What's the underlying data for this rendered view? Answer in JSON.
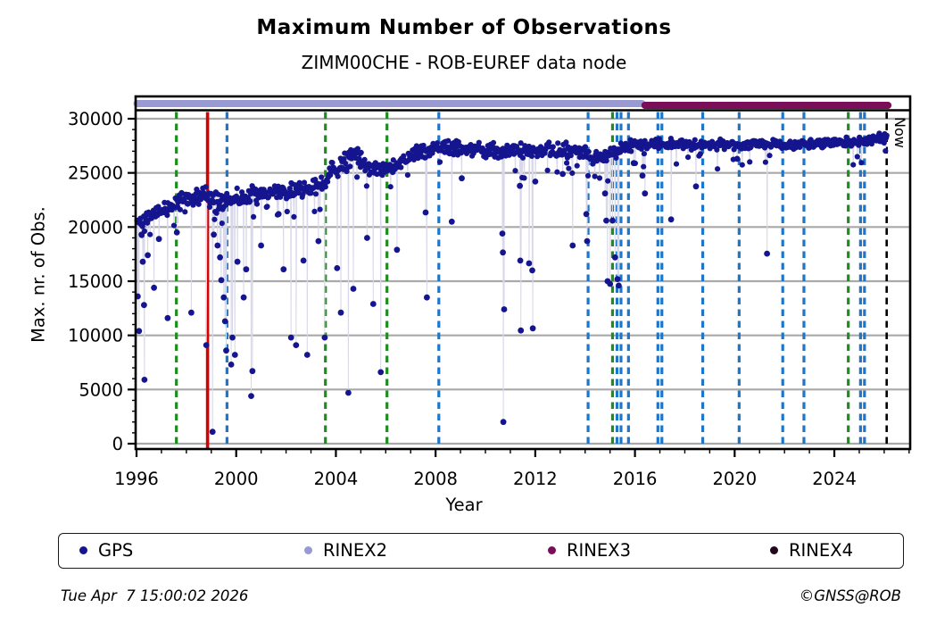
{
  "chart_data": {
    "type": "scatter",
    "title": "Maximum Number of Observations",
    "subtitle": "ZIMM00CHE - ROB-EUREF data node",
    "xlabel": "Year",
    "ylabel": "Max. nr. of Obs.",
    "now_label": "Now",
    "xlim": [
      1996,
      2027.05
    ],
    "ylim": [
      -500,
      32100
    ],
    "grid": true,
    "x_ticks": {
      "labels": [
        "1996",
        "2000",
        "2004",
        "2008",
        "2012",
        "2016",
        "2020",
        "2024"
      ],
      "values": [
        1996,
        2000,
        2004,
        2008,
        2012,
        2016,
        2020,
        2024
      ],
      "minor_step": 1
    },
    "y_ticks": {
      "labels": [
        "0",
        "5000",
        "10000",
        "15000",
        "20000",
        "25000",
        "30000"
      ],
      "values": [
        0,
        5000,
        10000,
        15000,
        20000,
        25000,
        30000
      ],
      "minor_step": 1000
    },
    "colors": {
      "gps": "#15158f",
      "rinex2": "#9a9ad2",
      "rinex3": "#7a0e58",
      "rinex4": "#22081c",
      "green": "#1e8c1e",
      "blue": "#1f76c8",
      "red": "#d60000",
      "black": "#000000",
      "grid": "#a9a9a9",
      "trace": "#d8d8ea"
    },
    "availability_bars": [
      {
        "name": "RINEX2",
        "start": 1996.02,
        "end": 2016.28,
        "color_key": "rinex2"
      },
      {
        "name": "RINEX3",
        "start": 2016.4,
        "end": 2026.15,
        "color_key": "rinex3"
      }
    ],
    "event_lines": [
      {
        "year": 1997.6,
        "color_key": "green",
        "style": "dashed"
      },
      {
        "year": 1998.85,
        "color_key": "red",
        "style": "solid"
      },
      {
        "year": 1999.63,
        "color_key": "blue",
        "style": "dashed"
      },
      {
        "year": 2003.58,
        "color_key": "green",
        "style": "dashed"
      },
      {
        "year": 2006.05,
        "color_key": "green",
        "style": "dashed"
      },
      {
        "year": 2008.13,
        "color_key": "blue",
        "style": "dashed"
      },
      {
        "year": 2014.12,
        "color_key": "blue",
        "style": "dashed"
      },
      {
        "year": 2015.1,
        "color_key": "green",
        "style": "dashed"
      },
      {
        "year": 2015.28,
        "color_key": "blue",
        "style": "dashed"
      },
      {
        "year": 2015.44,
        "color_key": "blue",
        "style": "dashed"
      },
      {
        "year": 2015.74,
        "color_key": "blue",
        "style": "dashed"
      },
      {
        "year": 2016.92,
        "color_key": "blue",
        "style": "dashed"
      },
      {
        "year": 2017.08,
        "color_key": "blue",
        "style": "dashed"
      },
      {
        "year": 2018.72,
        "color_key": "blue",
        "style": "dashed"
      },
      {
        "year": 2020.18,
        "color_key": "blue",
        "style": "dashed"
      },
      {
        "year": 2021.93,
        "color_key": "blue",
        "style": "dashed"
      },
      {
        "year": 2022.78,
        "color_key": "blue",
        "style": "dashed"
      },
      {
        "year": 2024.56,
        "color_key": "green",
        "style": "dashed"
      },
      {
        "year": 2025.05,
        "color_key": "blue",
        "style": "dashed"
      },
      {
        "year": 2025.21,
        "color_key": "blue",
        "style": "dashed"
      },
      {
        "year": 2026.1,
        "color_key": "black",
        "style": "dashed",
        "label": "Now"
      }
    ],
    "series": [
      {
        "name": "GPS",
        "band_envelope": [
          [
            1996.0,
            19700,
            21400
          ],
          [
            1996.5,
            20000,
            21700
          ],
          [
            1997.0,
            20600,
            22300
          ],
          [
            1997.5,
            21200,
            22900
          ],
          [
            1998.0,
            21800,
            23600
          ],
          [
            1998.6,
            22000,
            23800
          ],
          [
            1999.0,
            21200,
            23700
          ],
          [
            1999.6,
            21000,
            23500
          ],
          [
            2000.0,
            21500,
            23800
          ],
          [
            2000.5,
            21800,
            23800
          ],
          [
            2001.0,
            22000,
            24000
          ],
          [
            2001.5,
            22300,
            24100
          ],
          [
            2002.0,
            22300,
            24200
          ],
          [
            2002.5,
            22500,
            24300
          ],
          [
            2003.0,
            22800,
            24400
          ],
          [
            2003.6,
            23200,
            24800
          ],
          [
            2003.8,
            24000,
            26000
          ],
          [
            2004.2,
            24500,
            26800
          ],
          [
            2004.7,
            25500,
            27700
          ],
          [
            2005.1,
            24800,
            26800
          ],
          [
            2005.5,
            24600,
            26000
          ],
          [
            2005.9,
            24700,
            25900
          ],
          [
            2006.3,
            24900,
            26300
          ],
          [
            2006.7,
            25400,
            26900
          ],
          [
            2007.0,
            25800,
            27300
          ],
          [
            2007.5,
            26300,
            27900
          ],
          [
            2008.0,
            26500,
            28100
          ],
          [
            2008.5,
            26300,
            28000
          ],
          [
            2009.0,
            26500,
            28100
          ],
          [
            2009.5,
            26400,
            28000
          ],
          [
            2010.0,
            26300,
            27900
          ],
          [
            2010.5,
            26200,
            27800
          ],
          [
            2011.0,
            26300,
            27900
          ],
          [
            2011.5,
            26200,
            27800
          ],
          [
            2012.0,
            26300,
            27900
          ],
          [
            2012.5,
            26400,
            28000
          ],
          [
            2013.0,
            26200,
            27800
          ],
          [
            2013.5,
            26300,
            27900
          ],
          [
            2014.0,
            26000,
            27800
          ],
          [
            2014.3,
            25700,
            27100
          ],
          [
            2014.8,
            25800,
            27200
          ],
          [
            2015.2,
            26000,
            27500
          ],
          [
            2015.6,
            26800,
            28100
          ],
          [
            2016.0,
            27000,
            28200
          ],
          [
            2017.0,
            27200,
            28300
          ],
          [
            2018.0,
            27000,
            28200
          ],
          [
            2019.0,
            27100,
            28200
          ],
          [
            2020.0,
            27000,
            28100
          ],
          [
            2021.0,
            27200,
            28200
          ],
          [
            2022.0,
            26900,
            28100
          ],
          [
            2022.5,
            27000,
            28000
          ],
          [
            2023.0,
            27200,
            28300
          ],
          [
            2024.0,
            27300,
            28300
          ],
          [
            2025.0,
            27300,
            28400
          ],
          [
            2025.7,
            27600,
            28700
          ],
          [
            2026.12,
            27700,
            28800
          ]
        ],
        "outliers": [
          [
            1996.05,
            13600
          ],
          [
            1996.1,
            10400
          ],
          [
            1996.2,
            19300
          ],
          [
            1996.25,
            16800
          ],
          [
            1996.3,
            12800
          ],
          [
            1996.32,
            5900
          ],
          [
            1996.45,
            17400
          ],
          [
            1996.7,
            14400
          ],
          [
            1996.9,
            18900
          ],
          [
            1997.25,
            11600
          ],
          [
            1997.62,
            19500
          ],
          [
            1998.2,
            12100
          ],
          [
            1998.8,
            9100
          ],
          [
            1999.05,
            1100
          ],
          [
            1999.1,
            19300
          ],
          [
            1999.25,
            18300
          ],
          [
            1999.35,
            17200
          ],
          [
            1999.4,
            15100
          ],
          [
            1999.5,
            13500
          ],
          [
            1999.55,
            11300
          ],
          [
            1999.6,
            8600
          ],
          [
            1999.8,
            7300
          ],
          [
            1999.85,
            9800
          ],
          [
            1999.95,
            8200
          ],
          [
            2000.05,
            16800
          ],
          [
            2000.3,
            13500
          ],
          [
            2000.4,
            16100
          ],
          [
            2000.6,
            4400
          ],
          [
            2000.65,
            6700
          ],
          [
            2001.0,
            18300
          ],
          [
            2001.7,
            21200
          ],
          [
            2001.9,
            16100
          ],
          [
            2002.2,
            9800
          ],
          [
            2002.4,
            9100
          ],
          [
            2002.7,
            16900
          ],
          [
            2002.85,
            8200
          ],
          [
            2003.3,
            18700
          ],
          [
            2003.55,
            9800
          ],
          [
            2004.05,
            16200
          ],
          [
            2004.2,
            12100
          ],
          [
            2004.5,
            4700
          ],
          [
            2004.7,
            14300
          ],
          [
            2005.25,
            19000
          ],
          [
            2005.5,
            12900
          ],
          [
            2005.8,
            6600
          ],
          [
            2006.45,
            17900
          ],
          [
            2007.6,
            21350
          ],
          [
            2007.65,
            13500
          ],
          [
            2008.65,
            20500
          ],
          [
            2009.05,
            24500
          ],
          [
            2010.68,
            19400
          ],
          [
            2010.7,
            17650
          ],
          [
            2010.75,
            12400
          ],
          [
            2010.72,
            2000
          ],
          [
            2011.38,
            23800
          ],
          [
            2011.4,
            16900
          ],
          [
            2011.42,
            10450
          ],
          [
            2011.75,
            16650
          ],
          [
            2011.88,
            16000
          ],
          [
            2011.9,
            10650
          ],
          [
            2012.0,
            24200
          ],
          [
            2013.1,
            24900
          ],
          [
            2013.5,
            18300
          ],
          [
            2014.05,
            21200
          ],
          [
            2014.08,
            18700
          ],
          [
            2014.8,
            23100
          ],
          [
            2014.85,
            20600
          ],
          [
            2014.9,
            15000
          ],
          [
            2015.0,
            14750
          ],
          [
            2015.1,
            20600
          ],
          [
            2015.2,
            17200
          ],
          [
            2015.3,
            15200
          ],
          [
            2015.35,
            14600
          ],
          [
            2015.95,
            25900
          ],
          [
            2016.3,
            24750
          ],
          [
            2016.4,
            23100
          ],
          [
            2017.45,
            20700
          ],
          [
            2018.45,
            23750
          ],
          [
            2020.1,
            26300
          ],
          [
            2021.3,
            17550
          ]
        ]
      }
    ],
    "legend": {
      "items": [
        {
          "label": "GPS",
          "color_key": "gps"
        },
        {
          "label": "RINEX2",
          "color_key": "rinex2"
        },
        {
          "label": "RINEX3",
          "color_key": "rinex3"
        },
        {
          "label": "RINEX4",
          "color_key": "rinex4"
        }
      ]
    },
    "footer": {
      "left": "Tue Apr  7 15:00:02 2026",
      "right": "©GNSS@ROB"
    }
  }
}
